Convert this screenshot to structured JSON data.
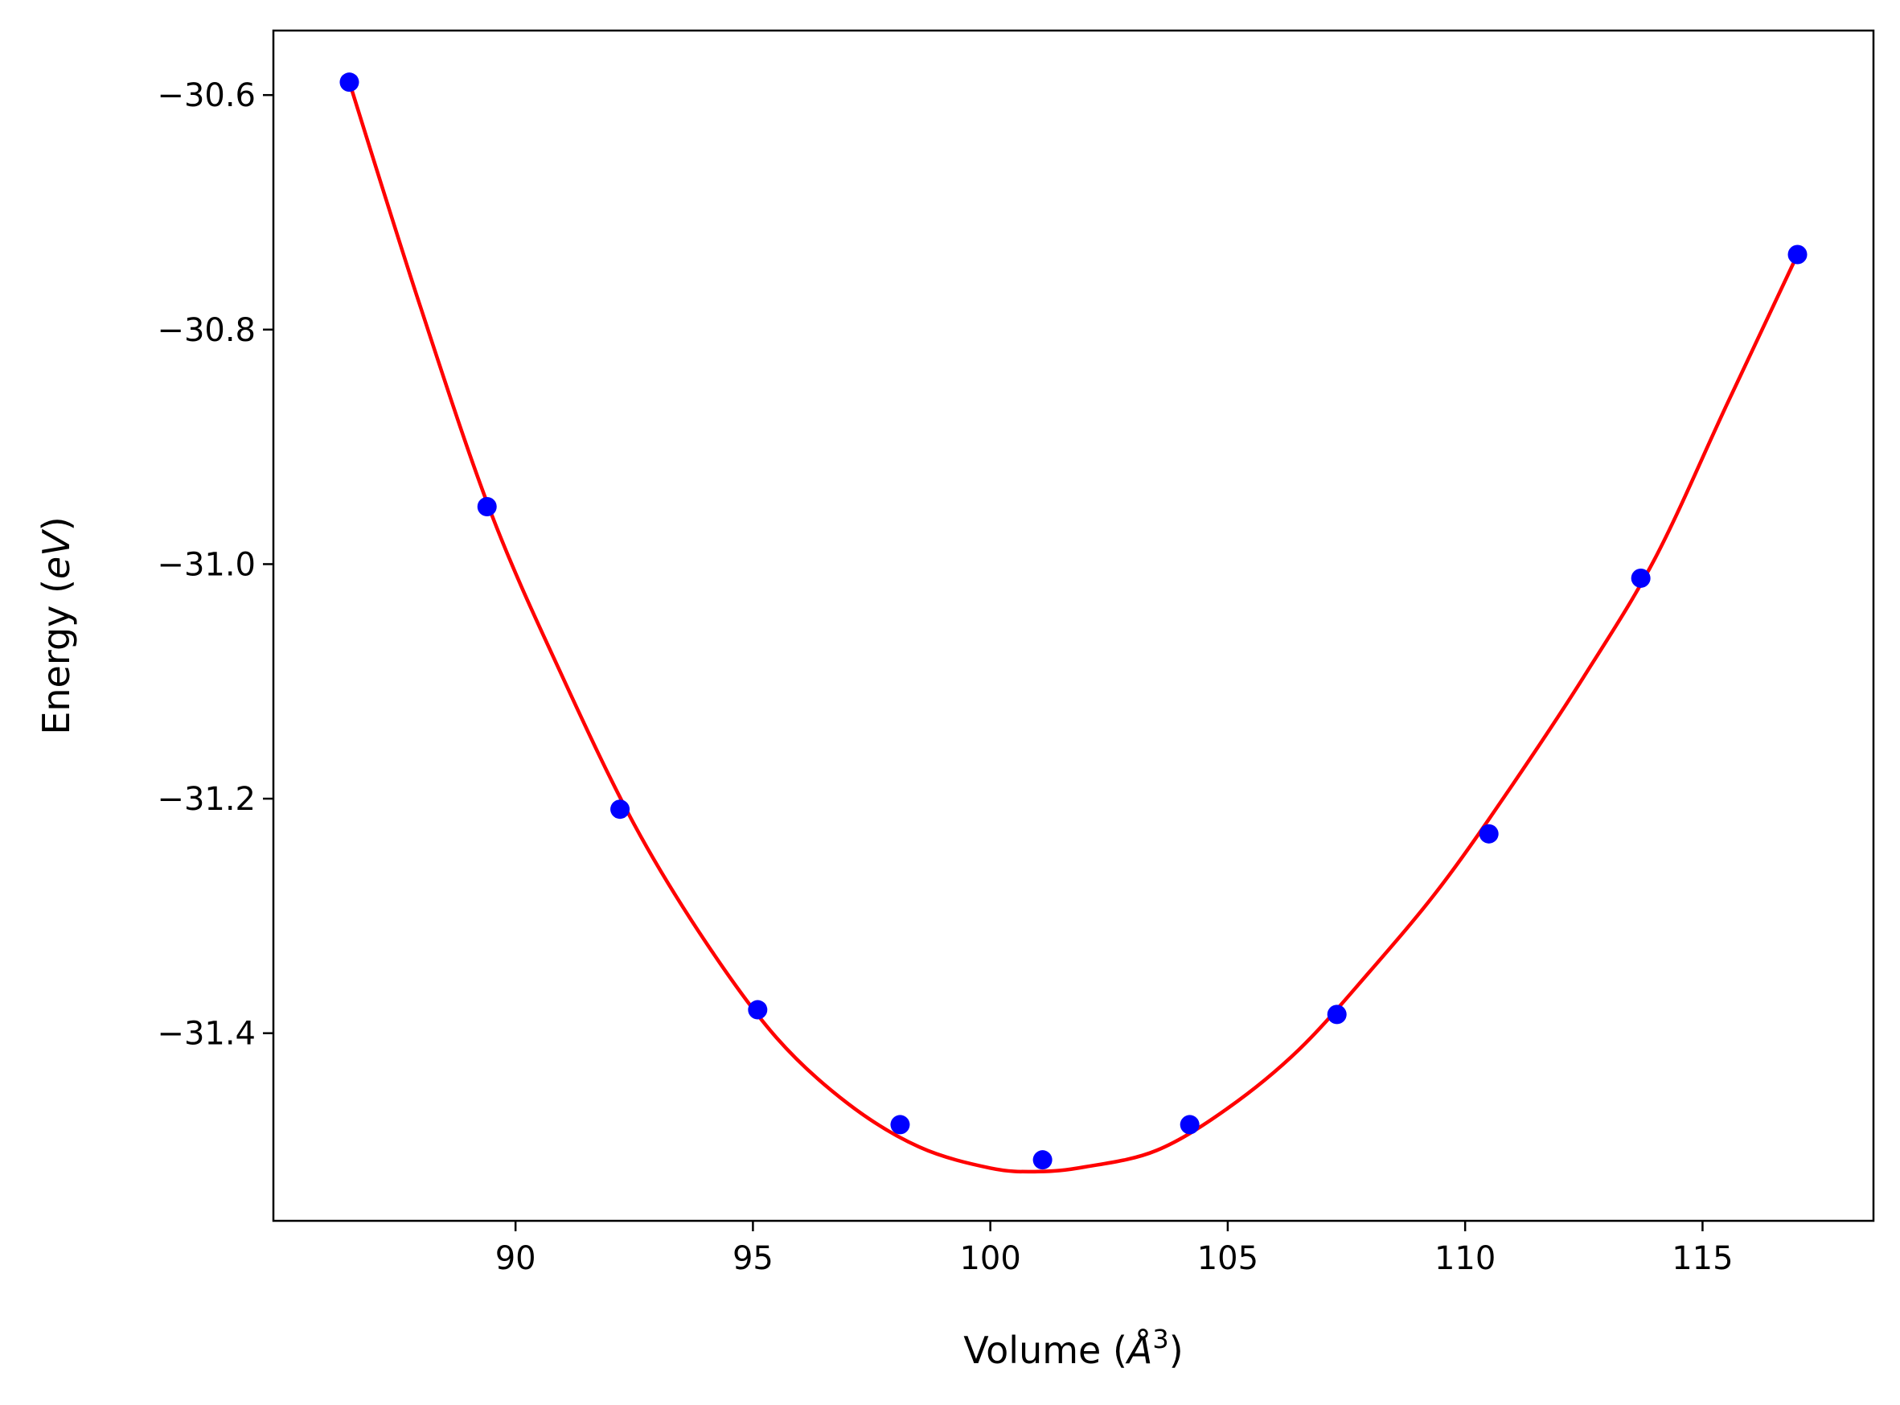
{
  "chart_data": {
    "type": "scatter",
    "title": "",
    "xlabel": "Volume",
    "xlabel_unit": "Å",
    "xlabel_unit_exp": "3",
    "ylabel": "Energy",
    "ylabel_unit": "eV",
    "xlim": [
      84.9,
      118.6
    ],
    "ylim": [
      -31.56,
      -30.545
    ],
    "xticks": [
      {
        "value": 90,
        "label": "90"
      },
      {
        "value": 95,
        "label": "95"
      },
      {
        "value": 100,
        "label": "100"
      },
      {
        "value": 105,
        "label": "105"
      },
      {
        "value": 110,
        "label": "110"
      },
      {
        "value": 115,
        "label": "115"
      }
    ],
    "yticks": [
      {
        "value": -30.6,
        "label": "−30.6"
      },
      {
        "value": -30.8,
        "label": "−30.8"
      },
      {
        "value": -31.0,
        "label": "−31.0"
      },
      {
        "value": -31.2,
        "label": "−31.2"
      },
      {
        "value": -31.4,
        "label": "−31.4"
      }
    ],
    "grid": false,
    "series": [
      {
        "kind": "points",
        "color": "#0000ff",
        "x": [
          86.5,
          89.4,
          92.2,
          95.1,
          98.1,
          101.1,
          104.2,
          107.3,
          110.5,
          113.7,
          117.0
        ],
        "y": [
          -30.589,
          -30.951,
          -31.209,
          -31.38,
          -31.478,
          -31.508,
          -31.478,
          -31.384,
          -31.23,
          -31.012,
          -30.736
        ]
      },
      {
        "kind": "fit-curve",
        "color": "#ff0000",
        "x": [
          86.5,
          88.0,
          89.5,
          91.0,
          92.5,
          94.0,
          95.5,
          97.0,
          98.5,
          100.0,
          101.0,
          102.0,
          103.5,
          105.0,
          106.5,
          108.0,
          109.5,
          111.0,
          112.5,
          114.0,
          115.5,
          117.0
        ],
        "y": [
          -30.589,
          -30.781,
          -30.958,
          -31.097,
          -31.222,
          -31.322,
          -31.404,
          -31.46,
          -31.497,
          -31.515,
          -31.518,
          -31.514,
          -31.5,
          -31.464,
          -31.414,
          -31.347,
          -31.274,
          -31.188,
          -31.096,
          -30.995,
          -30.865,
          -30.736
        ]
      }
    ]
  }
}
